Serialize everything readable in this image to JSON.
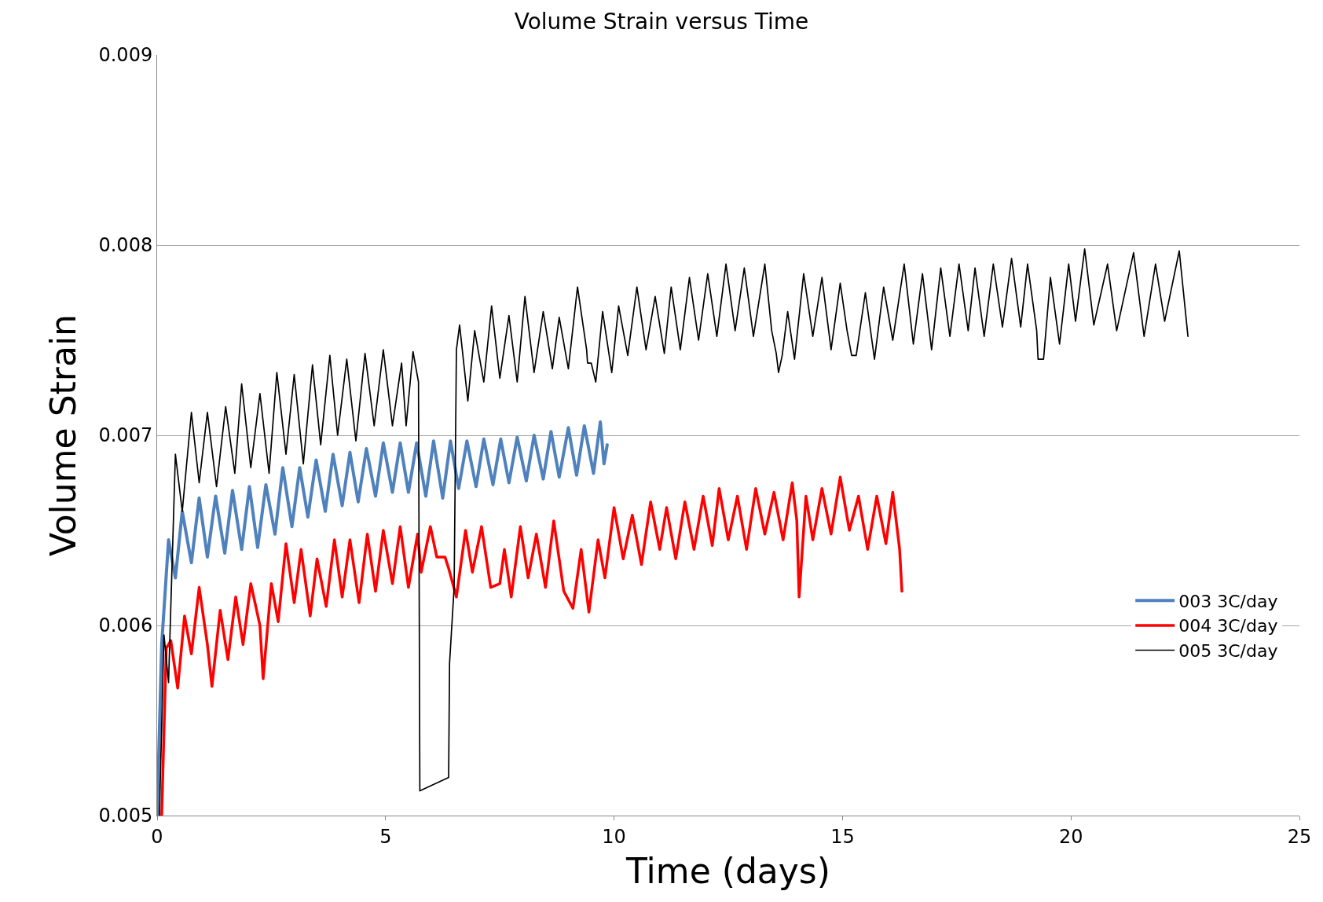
{
  "chart_data": {
    "type": "line",
    "title": "Volume Strain versus Time",
    "xlabel": "Time (days)",
    "ylabel": "Volume Strain",
    "xlim": [
      0,
      25
    ],
    "xticks": [
      0,
      5,
      10,
      15,
      20,
      25
    ],
    "ylim": [
      0.005,
      0.009
    ],
    "yticks": [
      0.005,
      0.006,
      0.007,
      0.008,
      0.009
    ],
    "grid": "y",
    "legend": "right",
    "marker": "none",
    "line_style": "solid",
    "series": [
      {
        "name": "003 3C/day",
        "color": "#4f81bd",
        "x": [
          0,
          0.1,
          0.25,
          0.4,
          0.55,
          0.75,
          0.92,
          1.1,
          1.28,
          1.48,
          1.65,
          1.85,
          2.02,
          2.2,
          2.38,
          2.58,
          2.75,
          2.95,
          3.12,
          3.3,
          3.48,
          3.68,
          3.85,
          4.05,
          4.22,
          4.4,
          4.58,
          4.78,
          4.95,
          5.15,
          5.32,
          5.5,
          5.68,
          5.88,
          6.05,
          6.25,
          6.42,
          6.6,
          6.78,
          6.98,
          7.15,
          7.35,
          7.52,
          7.7,
          7.88,
          8.08,
          8.25,
          8.45,
          8.62,
          8.8,
          9.0,
          9.18,
          9.35,
          9.55,
          9.7,
          9.78,
          9.85
        ],
        "values": [
          0.005,
          0.0059,
          0.00645,
          0.00625,
          0.0066,
          0.00633,
          0.00667,
          0.00636,
          0.00668,
          0.00638,
          0.00671,
          0.0064,
          0.00673,
          0.00641,
          0.00674,
          0.00648,
          0.00683,
          0.00652,
          0.00683,
          0.00657,
          0.00687,
          0.0066,
          0.0069,
          0.00663,
          0.00691,
          0.00665,
          0.00693,
          0.00668,
          0.00696,
          0.0067,
          0.00696,
          0.0067,
          0.00696,
          0.00668,
          0.00697,
          0.00667,
          0.00697,
          0.00672,
          0.00697,
          0.00673,
          0.00698,
          0.00674,
          0.00698,
          0.00675,
          0.00699,
          0.00676,
          0.007,
          0.00677,
          0.00702,
          0.00678,
          0.00704,
          0.00679,
          0.00705,
          0.0068,
          0.00707,
          0.00685,
          0.00695
        ]
      },
      {
        "name": "004 3C/day",
        "color": "#ff0000",
        "x": [
          0.1,
          0.2,
          0.3,
          0.45,
          0.6,
          0.75,
          0.92,
          1.1,
          1.2,
          1.38,
          1.55,
          1.72,
          1.88,
          2.05,
          2.25,
          2.32,
          2.5,
          2.65,
          2.82,
          3.0,
          3.15,
          3.35,
          3.5,
          3.7,
          3.88,
          4.05,
          4.22,
          4.42,
          4.6,
          4.78,
          4.95,
          5.15,
          5.32,
          5.5,
          5.7,
          5.78,
          5.98,
          6.12,
          6.3,
          6.38,
          6.55,
          6.75,
          6.9,
          7.1,
          7.3,
          7.5,
          7.6,
          7.75,
          7.95,
          8.12,
          8.3,
          8.5,
          8.68,
          8.9,
          9.1,
          9.28,
          9.45,
          9.65,
          9.8,
          10.0,
          10.2,
          10.4,
          10.6,
          10.8,
          11.0,
          11.15,
          11.35,
          11.55,
          11.75,
          11.95,
          12.15,
          12.3,
          12.5,
          12.7,
          12.9,
          13.1,
          13.3,
          13.5,
          13.7,
          13.9,
          14.0,
          14.05,
          14.2,
          14.35,
          14.55,
          14.75,
          14.95,
          15.15,
          15.35,
          15.55,
          15.75,
          15.95,
          16.1,
          16.25,
          16.3
        ],
        "values": [
          0.005,
          0.00588,
          0.00592,
          0.00567,
          0.00605,
          0.00585,
          0.0062,
          0.0059,
          0.00568,
          0.00608,
          0.00582,
          0.00615,
          0.0059,
          0.00622,
          0.006,
          0.00572,
          0.00622,
          0.00602,
          0.00643,
          0.00612,
          0.0064,
          0.00605,
          0.00635,
          0.0061,
          0.00645,
          0.00615,
          0.00645,
          0.00612,
          0.00648,
          0.00618,
          0.0065,
          0.00622,
          0.00652,
          0.0062,
          0.00648,
          0.00628,
          0.00652,
          0.00636,
          0.00636,
          0.0063,
          0.00615,
          0.0065,
          0.00628,
          0.00652,
          0.0062,
          0.00622,
          0.0064,
          0.00615,
          0.00652,
          0.00625,
          0.00648,
          0.0062,
          0.00655,
          0.00618,
          0.00609,
          0.0064,
          0.00607,
          0.00645,
          0.00625,
          0.00662,
          0.00635,
          0.00658,
          0.00632,
          0.00665,
          0.0064,
          0.00662,
          0.00635,
          0.00665,
          0.0064,
          0.00668,
          0.00642,
          0.00672,
          0.00645,
          0.00668,
          0.0064,
          0.00672,
          0.00648,
          0.0067,
          0.00645,
          0.00675,
          0.00655,
          0.00615,
          0.00668,
          0.00645,
          0.00672,
          0.00648,
          0.00678,
          0.0065,
          0.00668,
          0.0064,
          0.00668,
          0.00643,
          0.0067,
          0.0064,
          0.00618
        ]
      },
      {
        "name": "005 3C/day",
        "color": "#000000",
        "x": [
          0.05,
          0.15,
          0.25,
          0.4,
          0.55,
          0.75,
          0.92,
          1.1,
          1.3,
          1.5,
          1.7,
          1.85,
          2.05,
          2.25,
          2.45,
          2.62,
          2.82,
          3.0,
          3.2,
          3.4,
          3.58,
          3.78,
          3.95,
          4.15,
          4.35,
          4.55,
          4.75,
          4.95,
          5.15,
          5.35,
          5.45,
          5.6,
          5.72,
          5.75,
          6.38,
          6.4,
          6.5,
          6.55,
          6.62,
          6.8,
          6.95,
          7.15,
          7.32,
          7.5,
          7.7,
          7.88,
          8.05,
          8.25,
          8.45,
          8.65,
          8.8,
          9.0,
          9.2,
          9.4,
          9.42,
          9.5,
          9.6,
          9.75,
          9.95,
          10.1,
          10.3,
          10.5,
          10.7,
          10.9,
          11.1,
          11.25,
          11.45,
          11.65,
          11.85,
          12.05,
          12.25,
          12.45,
          12.65,
          12.85,
          13.05,
          13.3,
          13.45,
          13.55,
          13.6,
          13.68,
          13.8,
          13.95,
          14.15,
          14.35,
          14.55,
          14.75,
          14.95,
          15.1,
          15.2,
          15.3,
          15.5,
          15.7,
          15.9,
          16.1,
          16.35,
          16.55,
          16.75,
          16.95,
          17.15,
          17.35,
          17.55,
          17.75,
          17.9,
          18.1,
          18.3,
          18.5,
          18.7,
          18.9,
          19.05,
          19.25,
          19.28,
          19.4,
          19.55,
          19.75,
          19.95,
          20.1,
          20.3,
          20.5,
          20.8,
          21.0,
          21.37,
          21.6,
          21.85,
          22.05,
          22.37,
          22.56
        ],
        "values": [
          0.005,
          0.00595,
          0.0057,
          0.0069,
          0.0066,
          0.00712,
          0.00675,
          0.00712,
          0.00673,
          0.00715,
          0.0068,
          0.00727,
          0.00683,
          0.00722,
          0.0068,
          0.00733,
          0.0069,
          0.00732,
          0.00685,
          0.00737,
          0.00695,
          0.00742,
          0.007,
          0.0074,
          0.00697,
          0.00743,
          0.00705,
          0.00745,
          0.00705,
          0.00738,
          0.00705,
          0.00744,
          0.00728,
          0.00513,
          0.0052,
          0.0058,
          0.0062,
          0.00745,
          0.00758,
          0.00718,
          0.00755,
          0.00728,
          0.00768,
          0.0073,
          0.00763,
          0.00728,
          0.00773,
          0.00733,
          0.00765,
          0.00735,
          0.00762,
          0.00735,
          0.00778,
          0.00745,
          0.00738,
          0.00738,
          0.00728,
          0.00765,
          0.00733,
          0.00768,
          0.00742,
          0.00778,
          0.00745,
          0.00773,
          0.00743,
          0.00778,
          0.00745,
          0.00783,
          0.0075,
          0.00785,
          0.00752,
          0.0079,
          0.00755,
          0.00788,
          0.00752,
          0.0079,
          0.00755,
          0.00743,
          0.00733,
          0.00742,
          0.00765,
          0.0074,
          0.00785,
          0.00752,
          0.00783,
          0.00745,
          0.0078,
          0.00755,
          0.00742,
          0.00742,
          0.00775,
          0.0074,
          0.00778,
          0.0075,
          0.0079,
          0.00748,
          0.00785,
          0.00745,
          0.00788,
          0.00752,
          0.0079,
          0.00755,
          0.00788,
          0.00752,
          0.0079,
          0.00757,
          0.00793,
          0.00757,
          0.0079,
          0.00755,
          0.0074,
          0.0074,
          0.00783,
          0.00748,
          0.0079,
          0.0076,
          0.00798,
          0.00758,
          0.0079,
          0.00755,
          0.00796,
          0.00752,
          0.0079,
          0.0076,
          0.00797,
          0.00752
        ]
      }
    ]
  }
}
